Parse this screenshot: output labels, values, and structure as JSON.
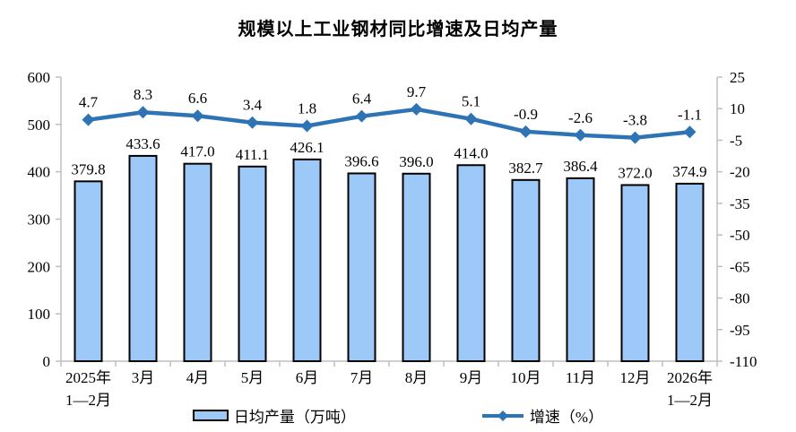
{
  "title": "规模以上工业钢材同比增速及日均产量",
  "colors": {
    "bar_fill": "#9CC9F7",
    "bar_border": "#000000",
    "line": "#2E74B5",
    "axis": "#BFBFBF",
    "label_text": "#000000"
  },
  "legend": {
    "bar_label": "日均产量（万吨）",
    "line_label": "增速（%）"
  },
  "chart_data": {
    "type": "bar",
    "subtype": "bar+line-dual-axis",
    "title": "规模以上工业钢材同比增速及日均产量",
    "categories": [
      "2025年\n1—2月",
      "3月",
      "4月",
      "5月",
      "6月",
      "7月",
      "8月",
      "9月",
      "10月",
      "11月",
      "12月",
      "2026年\n1—2月"
    ],
    "series": [
      {
        "name": "日均产量（万吨）",
        "type": "bar",
        "axis": "left",
        "values": [
          379.8,
          433.6,
          417.0,
          411.1,
          426.1,
          396.6,
          396.0,
          414.0,
          382.7,
          386.4,
          372.0,
          374.9
        ]
      },
      {
        "name": "增速（%）",
        "type": "line",
        "axis": "right",
        "values": [
          4.7,
          8.3,
          6.6,
          3.4,
          1.8,
          6.4,
          9.7,
          5.1,
          -0.9,
          -2.6,
          -3.8,
          -1.1
        ]
      }
    ],
    "left_axis": {
      "min": 0,
      "max": 600,
      "step": 100,
      "tick_labels": [
        "0",
        "100",
        "200",
        "300",
        "400",
        "500",
        "600"
      ]
    },
    "right_axis": {
      "min": -110,
      "max": 25,
      "step": 15,
      "tick_labels": [
        "-110",
        "-95",
        "-80",
        "-65",
        "-50",
        "-35",
        "-20",
        "-5",
        "10",
        "25"
      ]
    },
    "grid": false,
    "legend_position": "bottom",
    "data_labels": true
  }
}
